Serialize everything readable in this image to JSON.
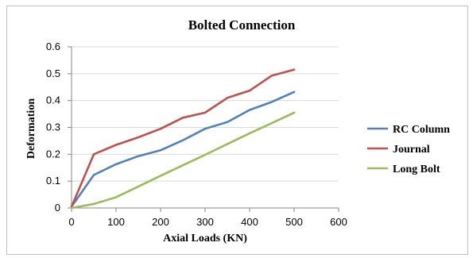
{
  "chart_data": {
    "type": "line",
    "title": "Bolted Connection",
    "xlabel": "Axial Loads (KN)",
    "ylabel": "Deformation",
    "xlim": [
      0,
      600
    ],
    "ylim": [
      0,
      0.6
    ],
    "x_ticks": [
      "0",
      "100",
      "200",
      "300",
      "400",
      "500",
      "600"
    ],
    "y_ticks": [
      "0",
      "0.1",
      "0.2",
      "0.3",
      "0.4",
      "0.5",
      "0.6"
    ],
    "grid": "horizontal",
    "legend_position": "right",
    "x": [
      0,
      50,
      100,
      150,
      200,
      250,
      300,
      350,
      400,
      450,
      500
    ],
    "series": [
      {
        "name": "RC Column",
        "color": "#4f81bd",
        "values": [
          0.005,
          0.123,
          0.163,
          0.193,
          0.215,
          0.252,
          0.295,
          0.32,
          0.365,
          0.395,
          0.432
        ]
      },
      {
        "name": "Journal",
        "color": "#c0504d",
        "values": [
          0.005,
          0.2,
          0.235,
          0.263,
          0.295,
          0.336,
          0.355,
          0.41,
          0.437,
          0.493,
          0.515
        ]
      },
      {
        "name": "Long Bolt",
        "color": "#9bbb59",
        "values": [
          0.0,
          0.015,
          0.04,
          0.08,
          0.12,
          0.159,
          0.198,
          0.238,
          0.278,
          0.316,
          0.355
        ]
      }
    ]
  }
}
